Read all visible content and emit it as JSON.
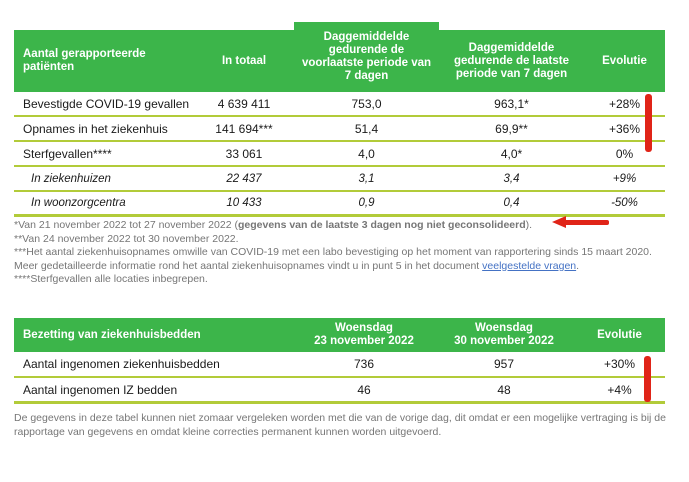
{
  "colors": {
    "header_green": "#3CB54A",
    "divider_olive": "#B2CB39",
    "annotation_red": "#E02418",
    "footnote_gray": "#767676",
    "link_blue": "#4472C4"
  },
  "table1": {
    "headers": {
      "label": "Aantal gerapporteerde patiënten",
      "total": "In totaal",
      "prev_period": "Daggemiddelde gedurende de voorlaatste periode van 7 dagen",
      "last_period": "Daggemiddelde gedurende de laatste periode van 7 dagen",
      "evolution": "Evolutie"
    },
    "rows": [
      {
        "label": "Bevestigde COVID-19 gevallen",
        "total": "4 639 411",
        "prev": "753,0",
        "last": "963,1*",
        "evolution": "+28%"
      },
      {
        "label": "Opnames in het ziekenhuis",
        "total": "141 694***",
        "prev": "51,4",
        "last": "69,9**",
        "evolution": "+36%"
      },
      {
        "label": "Sterfgevallen****",
        "total": "33 061",
        "prev": "4,0",
        "last": "4,0*",
        "evolution": "0%"
      },
      {
        "label": "In ziekenhuizen",
        "total": "22 437",
        "prev": "3,1",
        "last": "3,4",
        "evolution": "+9%"
      },
      {
        "label": "In woonzorgcentra",
        "total": "10 433",
        "prev": "0,9",
        "last": "0,4",
        "evolution": "-50%"
      }
    ]
  },
  "footnotes": {
    "fn1_prefix": "*Van 21 november 2022 tot 27 november 2022 (",
    "fn1_bold": "gegevens van de laatste 3 dagen nog niet geconsolideerd",
    "fn1_suffix": ").",
    "fn2": "**Van 24 november 2022 tot 30 november 2022.",
    "fn3_prefix": "***Het aantal ziekenhuisopnames omwille van COVID-19 met een labo bevestiging op het moment van rapportering sinds 15 maart 2020. Meer gedetailleerde informatie rond het aantal ziekenhuisopnames vindt u in punt 5 in het document ",
    "fn3_link": "veelgestelde vragen",
    "fn3_suffix": ".",
    "fn4": "****Sterfgevallen alle locaties inbegrepen."
  },
  "table2": {
    "headers": {
      "label": "Bezetting van ziekenhuisbedden",
      "date1_line1": "Woensdag",
      "date1_line2": "23 november 2022",
      "date2_line1": "Woensdag",
      "date2_line2": "30 november 2022",
      "evolution": "Evolutie"
    },
    "rows": [
      {
        "label": "Aantal ingenomen ziekenhuisbedden",
        "date1": "736",
        "date2": "957",
        "evolution": "+30%"
      },
      {
        "label": "Aantal ingenomen IZ bedden",
        "date1": "46",
        "date2": "48",
        "evolution": "+4%"
      }
    ],
    "note": "De gegevens in deze tabel kunnen niet zomaar vergeleken worden met die van de vorige dag, dit omdat er een mogelijke vertraging is bij de rapportage van gegevens en omdat kleine correcties permanent kunnen worden uitgevoerd."
  }
}
